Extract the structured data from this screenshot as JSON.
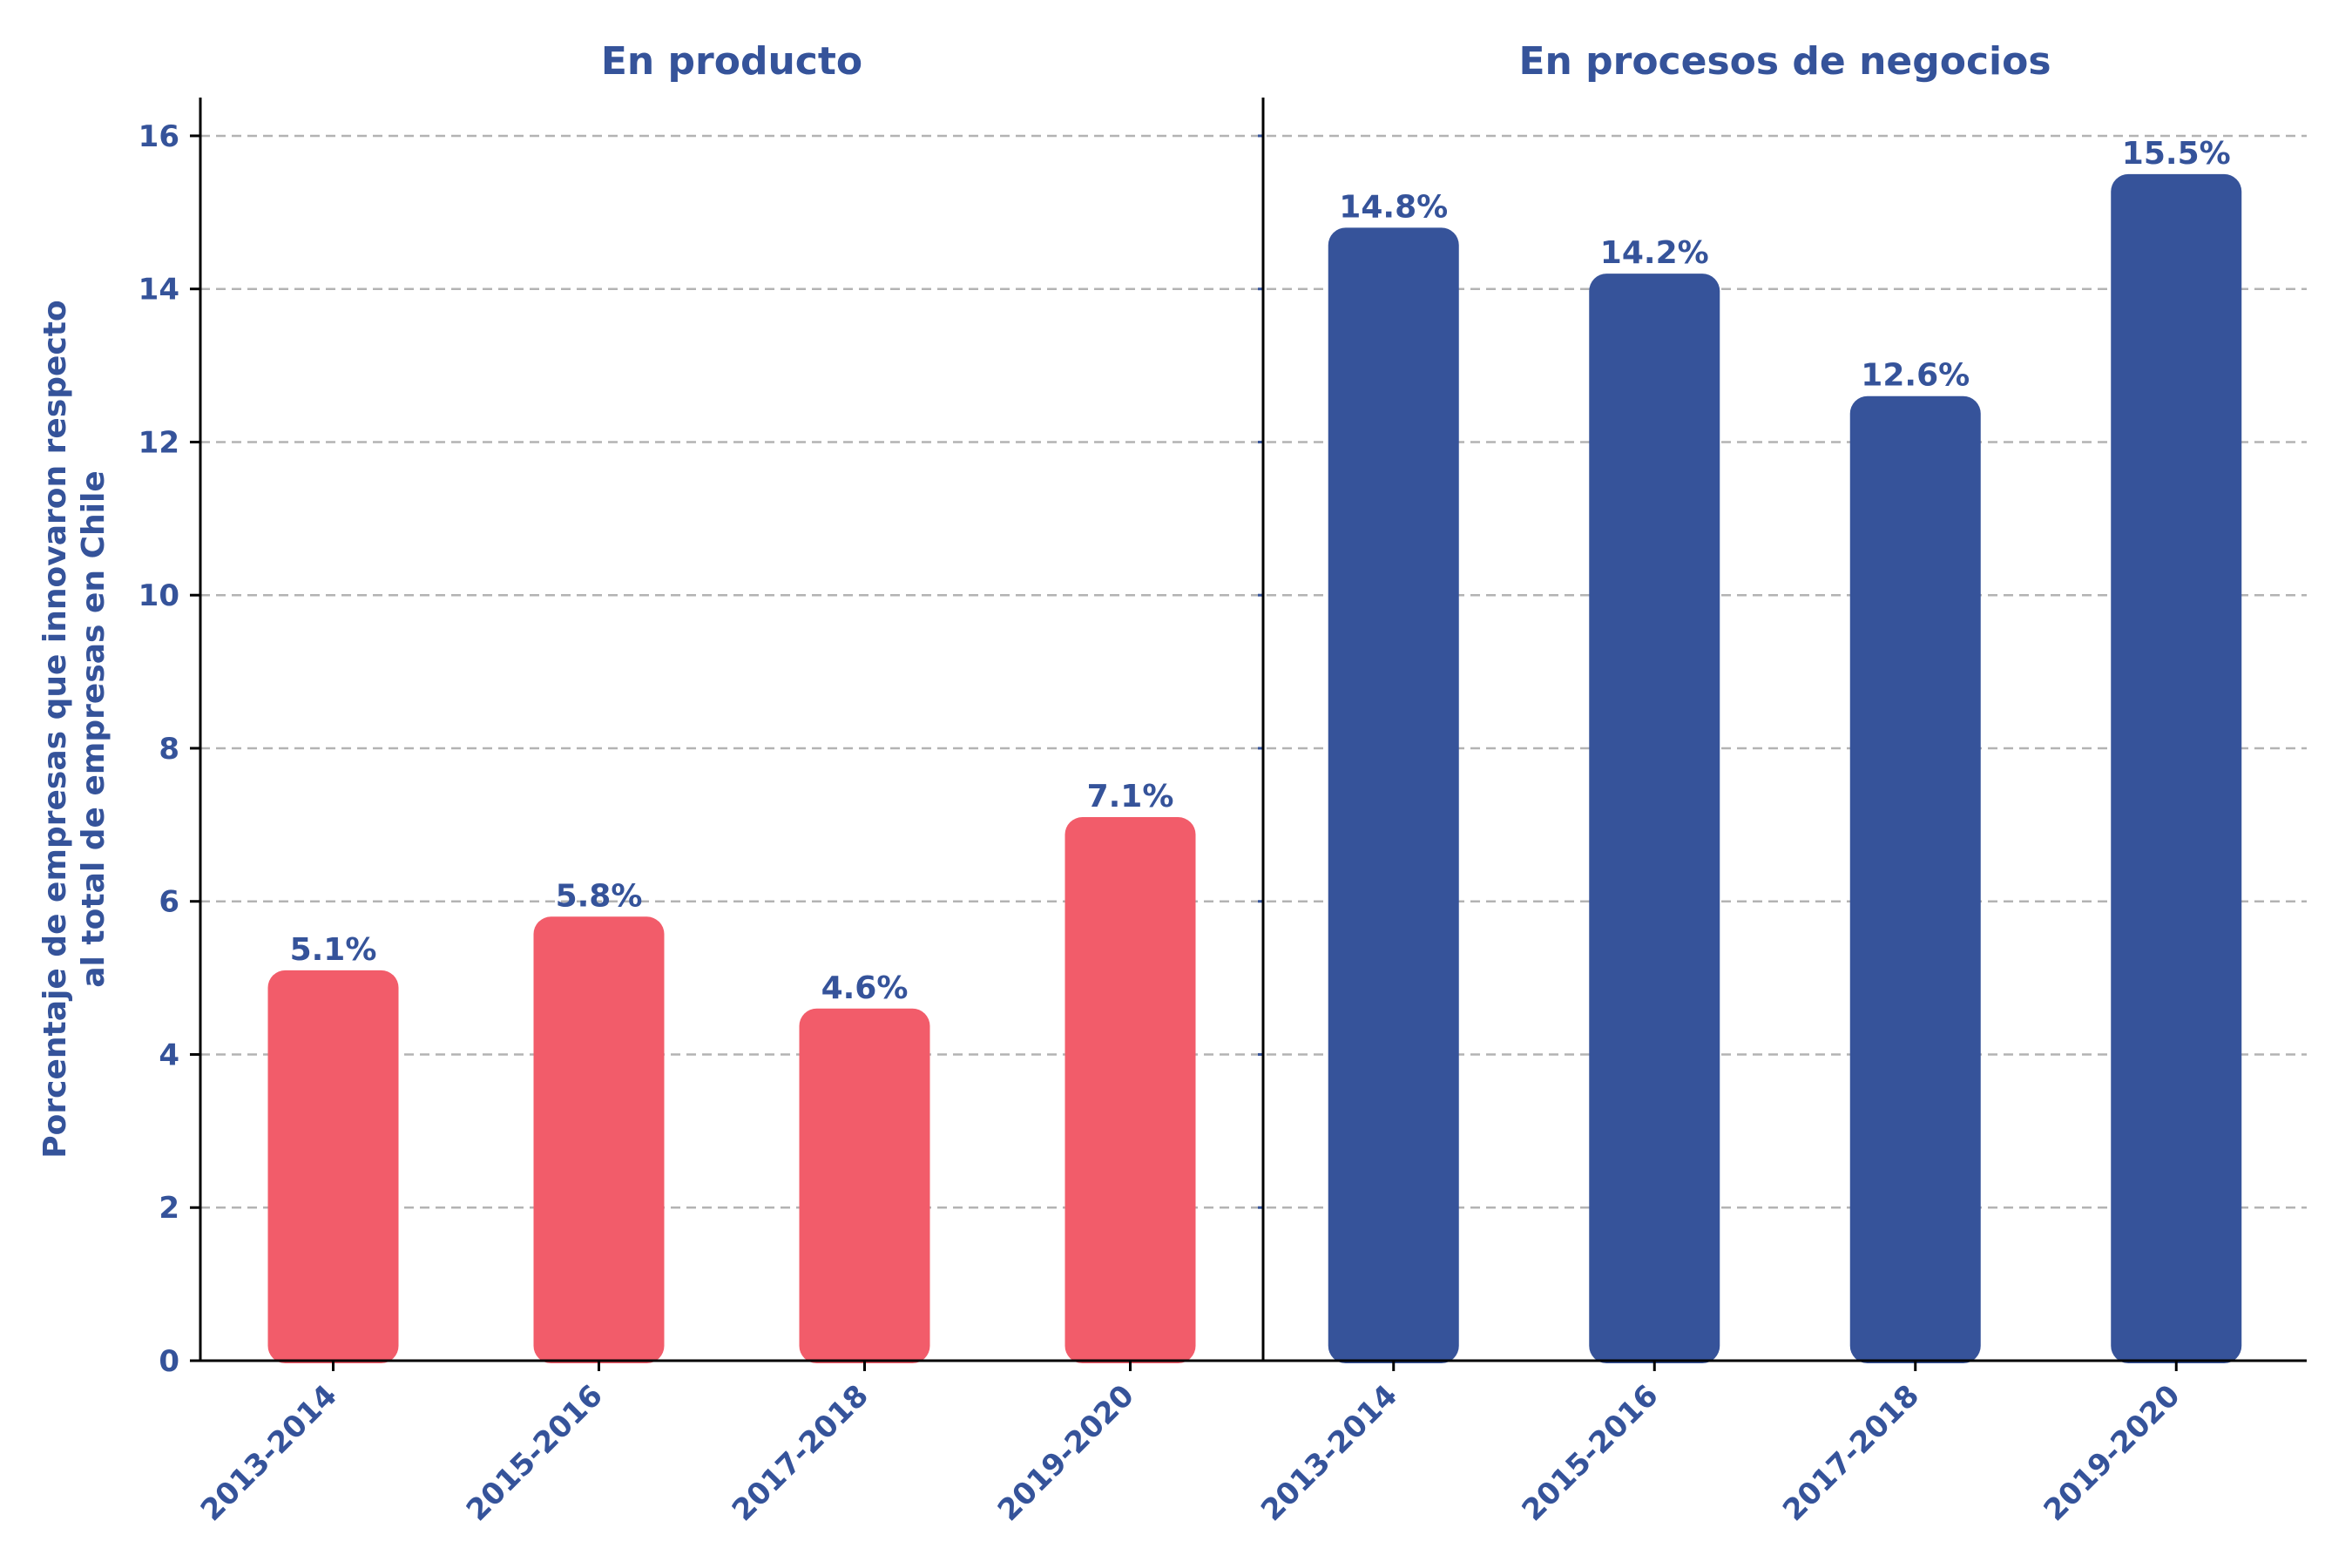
{
  "chart_data": {
    "type": "bar",
    "ylabel_lines": [
      "Porcentaje de empresas que innovaron respecto",
      "al total de empresas en Chile"
    ],
    "ylim": [
      0,
      16.5
    ],
    "yticks": [
      0,
      2,
      4,
      6,
      8,
      10,
      12,
      14,
      16
    ],
    "grid": true,
    "colors": {
      "text": "#35539a",
      "product": "#f25c6a",
      "process": "#36539a"
    },
    "panels": [
      {
        "title": "En producto",
        "categories": [
          "2013-2014",
          "2015-2016",
          "2017-2018",
          "2019-2020"
        ],
        "values": [
          5.1,
          5.8,
          4.6,
          7.1
        ],
        "labels": [
          "5.1%",
          "5.8%",
          "4.6%",
          "7.1%"
        ],
        "color": "#f25c6a"
      },
      {
        "title": "En procesos de negocios",
        "categories": [
          "2013-2014",
          "2015-2016",
          "2017-2018",
          "2019-2020"
        ],
        "values": [
          14.8,
          14.2,
          12.6,
          15.5
        ],
        "labels": [
          "14.8%",
          "14.2%",
          "12.6%",
          "15.5%"
        ],
        "color": "#36539a"
      }
    ]
  }
}
